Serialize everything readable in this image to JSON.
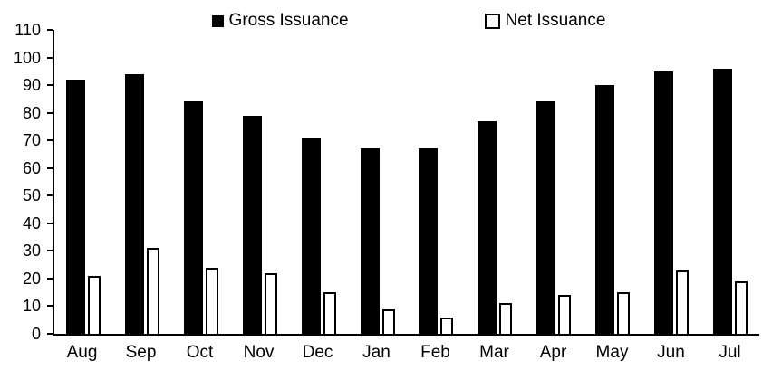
{
  "chart_data": {
    "type": "bar",
    "title": "",
    "categories": [
      "Aug",
      "Sep",
      "Oct",
      "Nov",
      "Dec",
      "Jan",
      "Feb",
      "Mar",
      "Apr",
      "May",
      "Jun",
      "Jul"
    ],
    "series": [
      {
        "name": "Gross Issuance",
        "color": "#000000",
        "values": [
          92,
          94,
          84,
          79,
          71,
          67,
          67,
          77,
          84,
          90,
          95,
          96
        ]
      },
      {
        "name": "Net Issuance",
        "color": "#ffffff",
        "values": [
          21,
          31,
          24,
          22,
          15,
          9,
          6,
          11,
          14,
          15,
          23,
          19
        ]
      }
    ],
    "xlabel": "",
    "ylabel": "",
    "ylim": [
      0,
      110
    ],
    "ytick_step": 10,
    "grid": false,
    "legend_position": "top-center",
    "axis_color": "#000000"
  }
}
